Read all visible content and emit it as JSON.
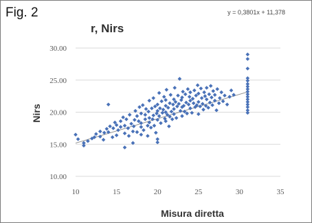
{
  "figure": {
    "label": "Fig. 2"
  },
  "chart_data": {
    "type": "scatter",
    "title": "r, Nirs",
    "xlabel": "Misura diretta",
    "ylabel": "Nirs",
    "xlim": [
      10,
      35
    ],
    "ylim": [
      10,
      30
    ],
    "x_ticks": [
      10,
      15,
      20,
      25,
      30,
      35
    ],
    "y_ticks": [
      "10.00",
      "15.00",
      "20.00",
      "25.00",
      "30.00"
    ],
    "grid": "horizontal",
    "legend": "none",
    "marker_color": "#4a72b8",
    "trendline": {
      "equation": "y = 0,3801x + 11,378",
      "slope": 0.3801,
      "intercept": 11.378,
      "color": "#8c8c8c"
    },
    "series": [
      {
        "points": [
          [
            10,
            16.5
          ],
          [
            10.3,
            15.8
          ],
          [
            11,
            15.2
          ],
          [
            11,
            14.8
          ],
          [
            11.5,
            15.5
          ],
          [
            12,
            15.9
          ],
          [
            12.3,
            16.1
          ],
          [
            12.5,
            16.6
          ],
          [
            13,
            16.2
          ],
          [
            13,
            17
          ],
          [
            13.4,
            15.7
          ],
          [
            13.5,
            16.8
          ],
          [
            13.8,
            17.4
          ],
          [
            14,
            16.9
          ],
          [
            14,
            21.2
          ],
          [
            14.2,
            17.8
          ],
          [
            14.5,
            16.1
          ],
          [
            14.6,
            17.5
          ],
          [
            14.8,
            18.4
          ],
          [
            15,
            16.4
          ],
          [
            15,
            18
          ],
          [
            15.2,
            17.2
          ],
          [
            15.5,
            17.7
          ],
          [
            15.5,
            18.6
          ],
          [
            15.8,
            19.2
          ],
          [
            16,
            14.5
          ],
          [
            16,
            16.7
          ],
          [
            16,
            17.9
          ],
          [
            16.2,
            18.9
          ],
          [
            16.4,
            17.5
          ],
          [
            16.5,
            16.3
          ],
          [
            16.6,
            19.6
          ],
          [
            16.8,
            18.2
          ],
          [
            17,
            15.2
          ],
          [
            17,
            17
          ],
          [
            17.1,
            17.8
          ],
          [
            17.2,
            18.8
          ],
          [
            17.3,
            20.2
          ],
          [
            17.5,
            16.9
          ],
          [
            17.5,
            19.4
          ],
          [
            17.7,
            18.6
          ],
          [
            17.8,
            20.8
          ],
          [
            18,
            16.5
          ],
          [
            18,
            17.7
          ],
          [
            18,
            18.3
          ],
          [
            18,
            19.8
          ],
          [
            18.2,
            21.1
          ],
          [
            18.3,
            17.2
          ],
          [
            18.5,
            18.9
          ],
          [
            18.5,
            19.6
          ],
          [
            18.6,
            20.5
          ],
          [
            18.8,
            16.3
          ],
          [
            18.8,
            17.9
          ],
          [
            18.9,
            20.1
          ],
          [
            19,
            18.4
          ],
          [
            19,
            19.1
          ],
          [
            19,
            21.8
          ],
          [
            19.2,
            17.6
          ],
          [
            19.3,
            20.6
          ],
          [
            19.4,
            18.9
          ],
          [
            19.5,
            19.5
          ],
          [
            19.5,
            22.2
          ],
          [
            19.6,
            17.9
          ],
          [
            19.7,
            20.9
          ],
          [
            19.8,
            16.8
          ],
          [
            19.9,
            19.8
          ],
          [
            20,
            15.3
          ],
          [
            20,
            15.8
          ],
          [
            20,
            18.8
          ],
          [
            20,
            20.2
          ],
          [
            20,
            21.2
          ],
          [
            20.2,
            19.4
          ],
          [
            20.2,
            23
          ],
          [
            20.3,
            20.6
          ],
          [
            20.4,
            18.3
          ],
          [
            20.5,
            21.7
          ],
          [
            20.6,
            19.9
          ],
          [
            20.7,
            20.4
          ],
          [
            20.8,
            22.4
          ],
          [
            20.9,
            19
          ],
          [
            21,
            18.6
          ],
          [
            21,
            20
          ],
          [
            21,
            21
          ],
          [
            21,
            21.9
          ],
          [
            21.1,
            23.5
          ],
          [
            21.2,
            19.6
          ],
          [
            21.3,
            20.7
          ],
          [
            21.4,
            17.8
          ],
          [
            21.5,
            19.3
          ],
          [
            21.5,
            21.4
          ],
          [
            21.6,
            22.7
          ],
          [
            21.7,
            20.1
          ],
          [
            21.8,
            18.9
          ],
          [
            21.9,
            21.2
          ],
          [
            22,
            19.7
          ],
          [
            22,
            20.5
          ],
          [
            22,
            22
          ],
          [
            22.1,
            23.8
          ],
          [
            22.2,
            21.6
          ],
          [
            22.3,
            19.1
          ],
          [
            22.4,
            20.9
          ],
          [
            22.5,
            22.6
          ],
          [
            22.6,
            21.3
          ],
          [
            22.7,
            25.2
          ],
          [
            22.8,
            20.2
          ],
          [
            22.9,
            21.9
          ],
          [
            23,
            19.4
          ],
          [
            23,
            20.8
          ],
          [
            23,
            22.3
          ],
          [
            23.1,
            23.2
          ],
          [
            23.2,
            21
          ],
          [
            23.3,
            20.1
          ],
          [
            23.4,
            22.8
          ],
          [
            23.5,
            21.5
          ],
          [
            23.6,
            19.8
          ],
          [
            23.7,
            23.6
          ],
          [
            23.8,
            21.2
          ],
          [
            23.9,
            22.4
          ],
          [
            24,
            20.6
          ],
          [
            24,
            21.8
          ],
          [
            24,
            23.1
          ],
          [
            24.2,
            19.9
          ],
          [
            24.3,
            22.1
          ],
          [
            24.4,
            21.4
          ],
          [
            24.5,
            23.4
          ],
          [
            24.6,
            20.8
          ],
          [
            24.7,
            22.6
          ],
          [
            24.8,
            21.1
          ],
          [
            24.9,
            24.2
          ],
          [
            25,
            19.7
          ],
          [
            25,
            21.6
          ],
          [
            25,
            22.9
          ],
          [
            25.2,
            20.9
          ],
          [
            25.3,
            23.7
          ],
          [
            25.4,
            22.2
          ],
          [
            25.5,
            21.3
          ],
          [
            25.6,
            20.4
          ],
          [
            25.7,
            23.1
          ],
          [
            25.8,
            22.5
          ],
          [
            25.9,
            21
          ],
          [
            26,
            22
          ],
          [
            26,
            23.8
          ],
          [
            26.2,
            20.7
          ],
          [
            26.3,
            22.8
          ],
          [
            26.4,
            21.5
          ],
          [
            26.5,
            24.1
          ],
          [
            26.6,
            22.3
          ],
          [
            26.7,
            21.1
          ],
          [
            26.8,
            23.3
          ],
          [
            27,
            21.8
          ],
          [
            27,
            22.7
          ],
          [
            27.2,
            20.3
          ],
          [
            27.3,
            23.6
          ],
          [
            27.5,
            21.4
          ],
          [
            27.6,
            22.2
          ],
          [
            27.8,
            23.1
          ],
          [
            28,
            21.7
          ],
          [
            28.2,
            22.6
          ],
          [
            28.5,
            21.2
          ],
          [
            28.8,
            22.4
          ],
          [
            29,
            23.4
          ],
          [
            29.3,
            22.7
          ],
          [
            31,
            19.9
          ],
          [
            31,
            20.3
          ],
          [
            31,
            20.8
          ],
          [
            31,
            21.2
          ],
          [
            31,
            21.6
          ],
          [
            31,
            22
          ],
          [
            31,
            22.4
          ],
          [
            31,
            22.8
          ],
          [
            31,
            23.2
          ],
          [
            31,
            23.6
          ],
          [
            31,
            24
          ],
          [
            31,
            24.4
          ],
          [
            31,
            24.9
          ],
          [
            31,
            25.3
          ],
          [
            31,
            26.8
          ],
          [
            31,
            28.3
          ],
          [
            31,
            29
          ]
        ]
      }
    ]
  }
}
